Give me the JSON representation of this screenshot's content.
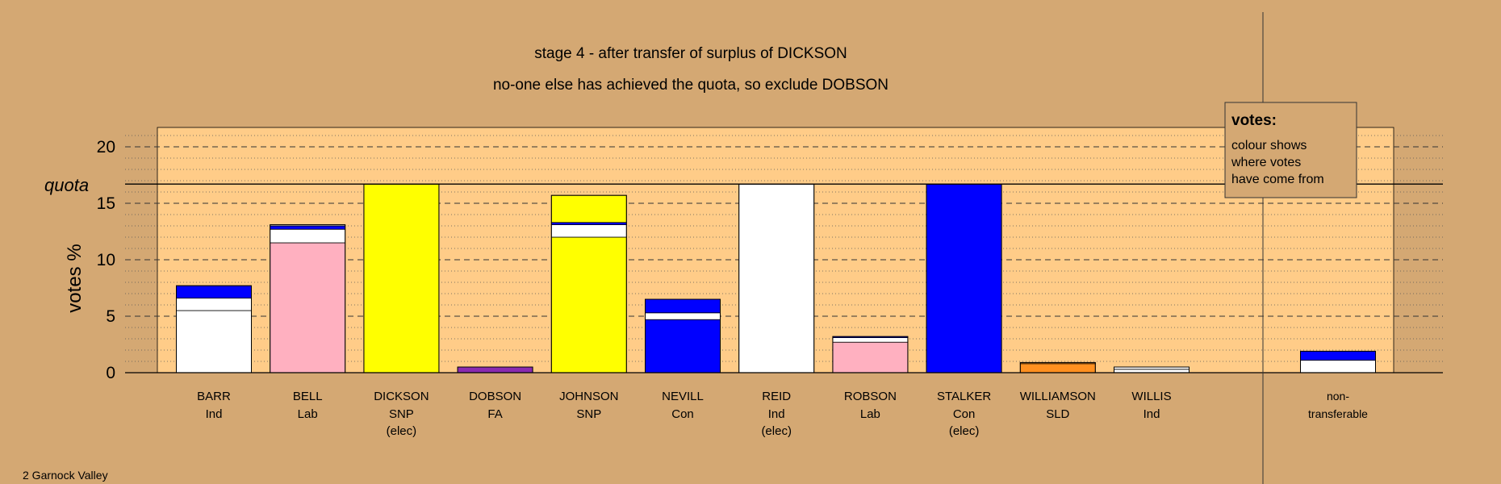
{
  "title_line1": "stage 4 - after transfer of surplus of DICKSON",
  "title_line2": "no-one else has achieved the quota, so exclude DOBSON",
  "footer": "2 Garnock Valley",
  "legend": {
    "heading": "votes:",
    "lines": [
      "colour shows",
      "where votes",
      "have come from"
    ]
  },
  "colors": {
    "background": "#D4A873",
    "plot_bg": "#FFCC88",
    "Ind": "#FFFFFF",
    "Lab": "#FFB0C0",
    "SNP": "#FFFF00",
    "FA": "#8A2BB0",
    "Con": "#0000FF",
    "SLD": "#FF9020",
    "nontransfer": "#FFFFFF",
    "elected": "#000000"
  },
  "chart_data": {
    "type": "bar",
    "stacked": true,
    "ylabel": "votes %",
    "ylim": [
      0,
      21
    ],
    "yticks": [
      0,
      5,
      10,
      15,
      20
    ],
    "quota": 16.7,
    "quota_label": "quota",
    "grid": true,
    "legend_position": "top-right",
    "candidates": [
      {
        "name": "BARR",
        "party": "Ind",
        "elected": "",
        "segments": [
          {
            "from": "Ind",
            "value": 5.5
          },
          {
            "from": "Ind",
            "value": 1.1
          },
          {
            "from": "Con",
            "value": 1.1
          }
        ]
      },
      {
        "name": "BELL",
        "party": "Lab",
        "elected": "",
        "segments": [
          {
            "from": "Lab",
            "value": 11.5
          },
          {
            "from": "Ind",
            "value": 1.2
          },
          {
            "from": "Con",
            "value": 0.3
          },
          {
            "from": "Ind",
            "value": 0.1
          }
        ]
      },
      {
        "name": "DICKSON",
        "party": "SNP",
        "elected": "(elec)",
        "segments": [
          {
            "from": "SNP",
            "value": 16.7
          }
        ]
      },
      {
        "name": "DOBSON",
        "party": "FA",
        "elected": "",
        "segments": [
          {
            "from": "FA",
            "value": 0.5
          }
        ]
      },
      {
        "name": "JOHNSON",
        "party": "SNP",
        "elected": "",
        "segments": [
          {
            "from": "SNP",
            "value": 12.0
          },
          {
            "from": "Ind",
            "value": 1.1
          },
          {
            "from": "Con",
            "value": 0.2
          },
          {
            "from": "SNP",
            "value": 2.4
          }
        ]
      },
      {
        "name": "NEVILL",
        "party": "Con",
        "elected": "",
        "segments": [
          {
            "from": "Con",
            "value": 4.7
          },
          {
            "from": "Ind",
            "value": 0.6
          },
          {
            "from": "Con",
            "value": 1.2
          }
        ]
      },
      {
        "name": "REID",
        "party": "Ind",
        "elected": "(elec)",
        "segments": [
          {
            "from": "Ind",
            "value": 16.7
          }
        ]
      },
      {
        "name": "ROBSON",
        "party": "Lab",
        "elected": "",
        "segments": [
          {
            "from": "Lab",
            "value": 2.7
          },
          {
            "from": "Ind",
            "value": 0.4
          },
          {
            "from": "Con",
            "value": 0.1
          }
        ]
      },
      {
        "name": "STALKER",
        "party": "Con",
        "elected": "(elec)",
        "segments": [
          {
            "from": "Con",
            "value": 16.7
          }
        ]
      },
      {
        "name": "WILLIAMSON",
        "party": "SLD",
        "elected": "",
        "segments": [
          {
            "from": "SLD",
            "value": 0.8
          },
          {
            "from": "SLD",
            "value": 0.1
          }
        ]
      },
      {
        "name": "WILLIS",
        "party": "Ind",
        "elected": "",
        "segments": [
          {
            "from": "Ind",
            "value": 0.3
          },
          {
            "from": "Ind",
            "value": 0.2
          }
        ]
      }
    ],
    "nontransferable": {
      "label_line1": "non-",
      "label_line2": "transferable",
      "segments": [
        {
          "from": "Ind",
          "value": 1.1
        },
        {
          "from": "Con",
          "value": 0.8
        }
      ]
    }
  }
}
